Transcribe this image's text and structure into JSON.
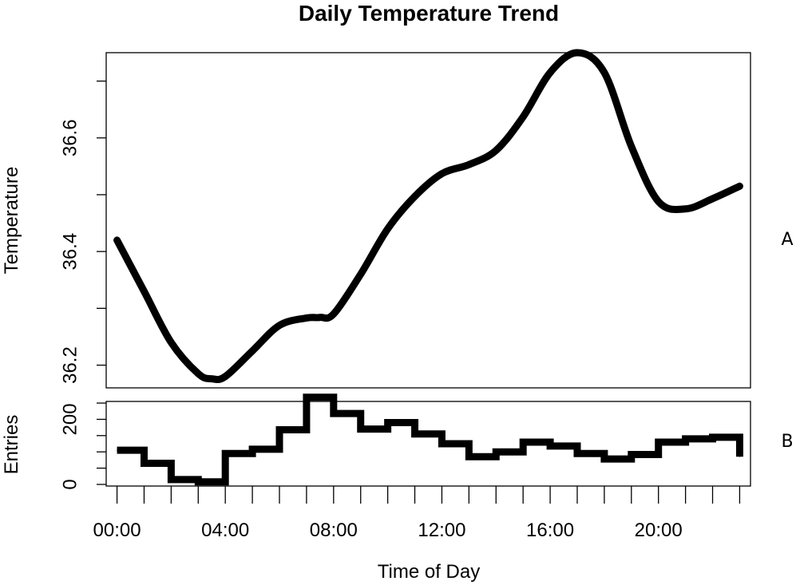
{
  "chart_data": [
    {
      "type": "line",
      "panel_tag": "A",
      "title": "Daily Temperature Trend",
      "xlabel": "",
      "ylabel": "Temperature",
      "xlim": [
        -0.4,
        23.4
      ],
      "ylim": [
        36.16,
        36.75
      ],
      "yticks": [
        36.2,
        36.3,
        36.4,
        36.5,
        36.6,
        36.7
      ],
      "ytick_labels": [
        "36.2",
        "",
        "36.4",
        "",
        "36.6",
        ""
      ],
      "grid": false,
      "series": [
        {
          "x": [
            0,
            1,
            2,
            3,
            3.5,
            4,
            5,
            6,
            7,
            7.5,
            8,
            9,
            10,
            11,
            12,
            13,
            14,
            15,
            16,
            17,
            18,
            19,
            20,
            21,
            22,
            23
          ],
          "y": [
            36.42,
            36.33,
            36.24,
            36.185,
            36.176,
            36.18,
            36.225,
            36.27,
            36.283,
            36.284,
            36.29,
            36.36,
            36.44,
            36.497,
            36.537,
            36.553,
            36.578,
            36.637,
            36.715,
            36.75,
            36.715,
            36.585,
            36.488,
            36.475,
            36.493,
            36.515
          ]
        }
      ]
    },
    {
      "type": "step",
      "panel_tag": "B",
      "xlabel": "Time of Day",
      "ylabel": "Entries",
      "xlim": [
        -0.4,
        23.4
      ],
      "ylim": [
        -5,
        255
      ],
      "yticks": [
        0,
        50,
        100,
        150,
        200,
        250
      ],
      "ytick_labels": [
        "0",
        "",
        "",
        "",
        "200",
        ""
      ],
      "xticks": [
        0,
        1,
        2,
        3,
        4,
        5,
        6,
        7,
        8,
        9,
        10,
        11,
        12,
        13,
        14,
        15,
        16,
        17,
        18,
        19,
        20,
        21,
        22,
        23
      ],
      "xtick_labels": [
        "00:00",
        "",
        "",
        "",
        "04:00",
        "",
        "",
        "",
        "08:00",
        "",
        "",
        "",
        "12:00",
        "",
        "",
        "",
        "16:00",
        "",
        "",
        "",
        "20:00",
        "",
        "",
        ""
      ],
      "grid": false,
      "series": [
        {
          "x": [
            0,
            1,
            2,
            3,
            4,
            5,
            6,
            7,
            8,
            9,
            10,
            11,
            12,
            13,
            14,
            15,
            16,
            17,
            18,
            19,
            20,
            21,
            22,
            23
          ],
          "y": [
            105,
            65,
            15,
            8,
            95,
            108,
            168,
            268,
            218,
            170,
            190,
            155,
            125,
            85,
            100,
            130,
            118,
            95,
            78,
            92,
            130,
            140,
            145,
            85
          ]
        }
      ]
    }
  ]
}
